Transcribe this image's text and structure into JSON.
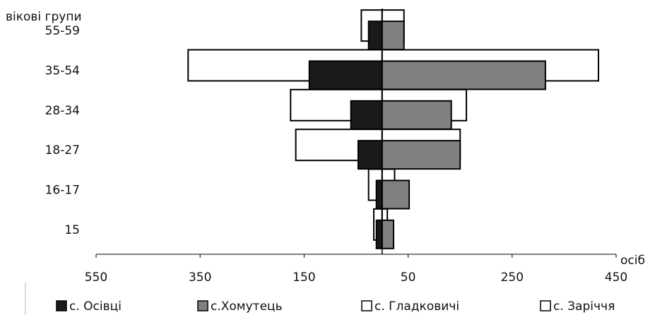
{
  "chart_data": {
    "type": "pyramid-bar",
    "y_label": "вікові групи",
    "x_label": "осіб",
    "categories": [
      "15",
      "16-17",
      "18-27",
      "28-34",
      "35-54",
      "55-59"
    ],
    "series": [
      {
        "name": "с. Осівці",
        "color": "#1a1a1a",
        "values": [
          -11,
          -11,
          -46,
          -60,
          -140,
          -26
        ]
      },
      {
        "name": "с.Хомутець",
        "color": "#808080",
        "values": [
          22,
          52,
          150,
          133,
          314,
          42
        ]
      },
      {
        "name": "с. Гладковичі",
        "color": "#ffffff",
        "values": [
          -16,
          -26,
          -166,
          -176,
          -373,
          -40
        ]
      },
      {
        "name": "с. Заріччя",
        "color": "#ffffff",
        "values": [
          10,
          24,
          150,
          162,
          416,
          42
        ]
      }
    ],
    "xlim": [
      -550,
      450
    ],
    "xticks": [
      {
        "value": -550,
        "label": "550"
      },
      {
        "value": -350,
        "label": "350"
      },
      {
        "value": -150,
        "label": "150"
      },
      50,
      250,
      450
    ]
  }
}
